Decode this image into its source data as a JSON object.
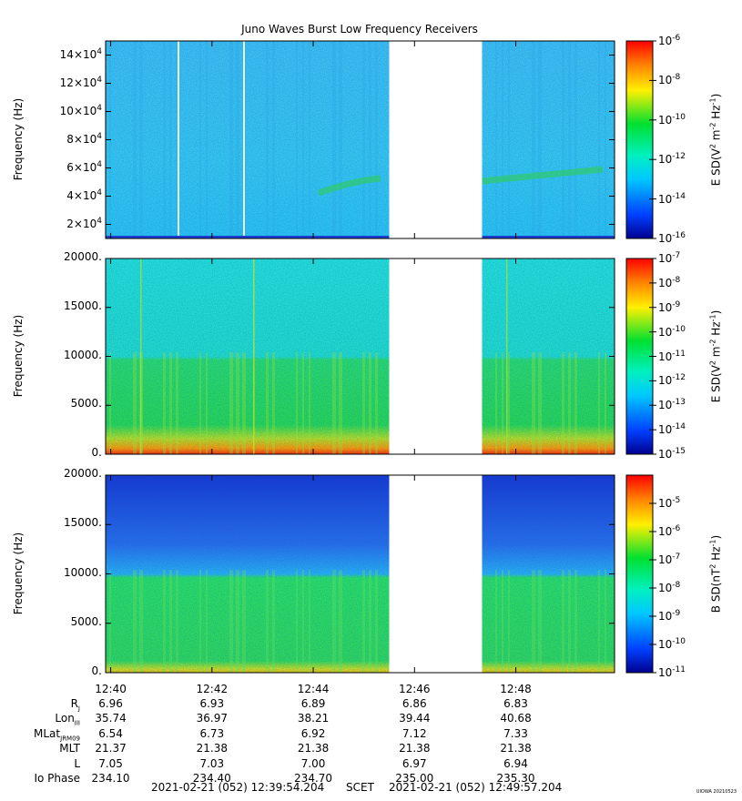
{
  "title": "Juno Waves Burst Low Frequency Receivers",
  "colors": {
    "deep_blue": "#0033cc",
    "blue": "#2a8cff",
    "cyan": "#20d8ff",
    "green": "#22dd66",
    "yellow": "#ffe000",
    "orange": "#ff8c00",
    "red": "#ff2000"
  },
  "chart_data": [
    {
      "type": "heatmap",
      "ylabel": "Frequency (Hz)",
      "ytick_labels": [
        "2×10^4",
        "4×10^4",
        "6×10^4",
        "8×10^4",
        "10×10^4",
        "12×10^4",
        "14×10^4"
      ],
      "yticks": [
        20000,
        40000,
        60000,
        80000,
        100000,
        120000,
        140000
      ],
      "ylim": [
        10000,
        150000
      ],
      "colorbar": {
        "label": "E SD (V^2 m^-2 Hz^-1)",
        "label_parts": [
          "E SD(V",
          "2",
          " m",
          "-2",
          " Hz",
          "-1",
          ")"
        ],
        "scale": "log",
        "range": [
          -16,
          -6
        ],
        "tick_exponents": [
          -6,
          -8,
          -10,
          -12,
          -14,
          -16
        ]
      }
    },
    {
      "type": "heatmap",
      "ylabel": "Frequency (Hz)",
      "ytick_labels": [
        "0.",
        "5000.",
        "10000.",
        "15000.",
        "20000."
      ],
      "yticks": [
        0,
        5000,
        10000,
        15000,
        20000
      ],
      "ylim": [
        0,
        20000
      ],
      "colorbar": {
        "label": "E SD (V^2 m^-2 Hz^-1)",
        "label_parts": [
          "E SD(V",
          "2",
          " m",
          "-2",
          " Hz",
          "-1",
          ")"
        ],
        "scale": "log",
        "range": [
          -15,
          -7
        ],
        "tick_exponents": [
          -7,
          -8,
          -9,
          -10,
          -11,
          -12,
          -13,
          -14,
          -15
        ]
      }
    },
    {
      "type": "heatmap",
      "ylabel": "Frequency (Hz)",
      "ytick_labels": [
        "0.",
        "5000.",
        "10000.",
        "15000.",
        "20000."
      ],
      "yticks": [
        0,
        5000,
        10000,
        15000,
        20000
      ],
      "ylim": [
        0,
        20000
      ],
      "colorbar": {
        "label": "B SD (nT^2 Hz^-1)",
        "label_parts": [
          "B SD(nT",
          "2",
          " Hz",
          "-1",
          ")"
        ],
        "scale": "log",
        "range": [
          -11,
          -4
        ],
        "tick_exponents": [
          -5,
          -6,
          -7,
          -8,
          -9,
          -10,
          -11
        ]
      }
    }
  ],
  "x_axis": {
    "start": "12:39:54",
    "end": "12:49:57",
    "data_gap": [
      "12:45:30",
      "12:47:20"
    ],
    "tick_labels": [
      "12:40",
      "12:42",
      "12:44",
      "12:46",
      "12:48"
    ]
  },
  "ephemeris": {
    "rows": [
      {
        "label": "R",
        "sub": "J",
        "values": [
          "6.96",
          "6.93",
          "6.89",
          "6.86",
          "6.83"
        ]
      },
      {
        "label": "Lon",
        "sub": "III",
        "values": [
          "35.74",
          "36.97",
          "38.21",
          "39.44",
          "40.68"
        ]
      },
      {
        "label": "MLat",
        "sub": "JRM09",
        "values": [
          "6.54",
          "6.73",
          "6.92",
          "7.12",
          "7.33"
        ]
      },
      {
        "label": "MLT",
        "sub": "",
        "values": [
          "21.37",
          "21.38",
          "21.38",
          "21.38",
          "21.38"
        ]
      },
      {
        "label": "L",
        "sub": "",
        "values": [
          "7.05",
          "7.03",
          "7.00",
          "6.97",
          "6.94"
        ]
      },
      {
        "label": "Io Phase",
        "sub": "",
        "values": [
          "234.10",
          "234.40",
          "234.70",
          "235.00",
          "235.30"
        ]
      }
    ]
  },
  "scet": {
    "start": "2021-02-21 (052) 12:39:54.204",
    "label": "SCET",
    "end": "2021-02-21 (052) 12:49:57.204"
  },
  "stamp": "UIOWA 20210523"
}
